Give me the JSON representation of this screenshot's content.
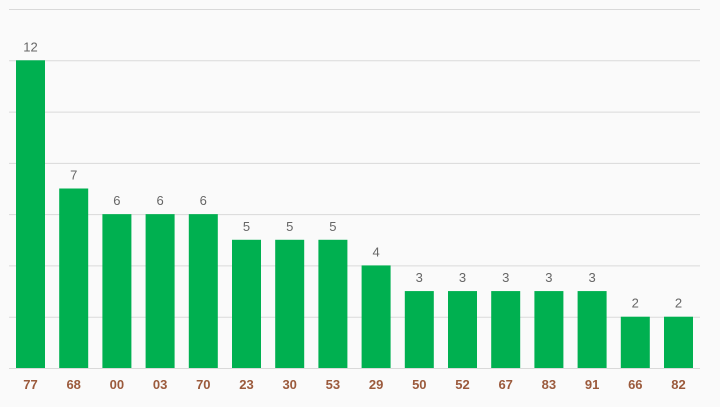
{
  "chart_data": {
    "type": "bar",
    "categories": [
      "77",
      "68",
      "00",
      "03",
      "70",
      "23",
      "30",
      "53",
      "29",
      "50",
      "52",
      "67",
      "83",
      "91",
      "66",
      "82"
    ],
    "values": [
      12,
      7,
      6,
      6,
      6,
      5,
      5,
      5,
      4,
      3,
      3,
      3,
      3,
      3,
      2,
      2
    ],
    "title": "",
    "xlabel": "",
    "ylabel": "",
    "ylim": [
      0,
      14
    ],
    "grid": true,
    "data_labels": true,
    "colors": {
      "bar": "#00b050",
      "grid": "#d9d9d9",
      "value_label": "#666666",
      "tick_label": "#9b5a3c",
      "background": "#fafafa"
    }
  }
}
